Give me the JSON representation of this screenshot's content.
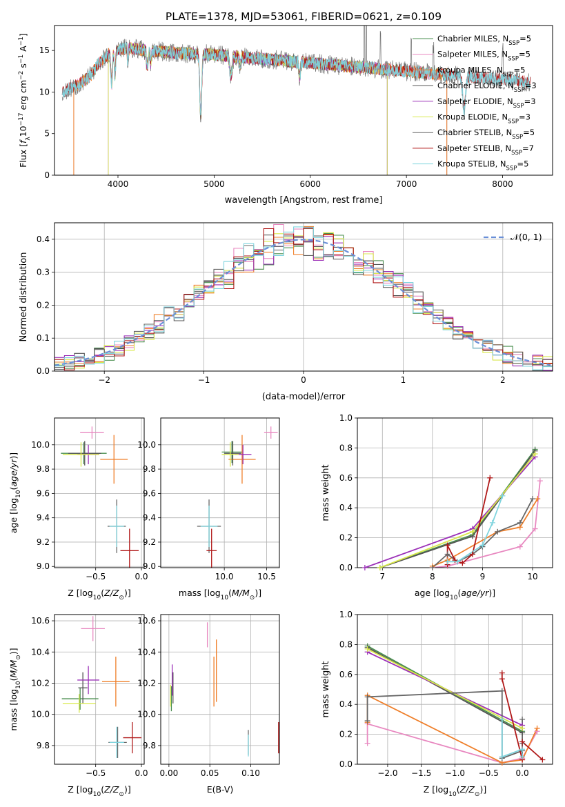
{
  "title": "PLATE=1378, MJD=53061, FIBERID=0621, z=0.109",
  "colors": {
    "Chabrier MILES": "#4a8f4f",
    "Salpeter MILES": "#e888c0",
    "Kroupa MILES": "#ef7f2a",
    "Chabrier ELODIE": "#555555",
    "Salpeter ELODIE": "#9b30b8",
    "Kroupa ELODIE": "#d8e84a",
    "Chabrier STELIB": "#666666",
    "Salpeter STELIB": "#b01818",
    "Kroupa STELIB": "#7fd4de",
    "normal": "#6a8fd8",
    "grid": "#b0b0b0"
  },
  "chart_data": [
    {
      "type": "line",
      "id": "spectrum",
      "xlabel": "wavelength [Angstrom, rest frame]",
      "ylabel": "Flux [f_λ 10^-17 erg cm^-2 s^-1 A^-1]",
      "xlim": [
        3340,
        8520
      ],
      "ylim": [
        0,
        18
      ],
      "xticks": [
        4000,
        5000,
        6000,
        7000,
        8000
      ],
      "yticks": [
        0,
        5,
        10,
        15
      ],
      "legend_position": "top-right",
      "series": [
        {
          "name": "Chabrier MILES, N_SSP=5",
          "label_main": "Chabrier MILES, N",
          "label_sub": "SSP",
          "label_tail": "=5",
          "key": "Chabrier MILES",
          "x_range": [
            3540,
            7420
          ],
          "linewidth": 0.8
        },
        {
          "name": "Salpeter MILES, N_SSP=5",
          "label_main": "Salpeter MILES, N",
          "label_sub": "SSP",
          "label_tail": "=5",
          "key": "Salpeter MILES",
          "x_range": [
            3540,
            7420
          ],
          "linewidth": 0.8
        },
        {
          "name": "Kroupa MILES, N_SSP=5",
          "label_main": "Kroupa MILES, N",
          "label_sub": "SSP",
          "label_tail": "=5",
          "key": "Kroupa MILES",
          "x_range": [
            3540,
            7420
          ],
          "linewidth": 1.0
        },
        {
          "name": "Chabrier ELODIE, N_SSP=3",
          "label_main": "Chabrier ELODIE, N",
          "label_sub": "SSP",
          "label_tail": "=3",
          "key": "Chabrier ELODIE",
          "x_range": [
            3900,
            6800
          ],
          "linewidth": 0.8
        },
        {
          "name": "Salpeter ELODIE, N_SSP=3",
          "label_main": "Salpeter ELODIE, N",
          "label_sub": "SSP",
          "label_tail": "=3",
          "key": "Salpeter ELODIE",
          "x_range": [
            3900,
            6800
          ],
          "linewidth": 0.8
        },
        {
          "name": "Kroupa ELODIE, N_SSP=3",
          "label_main": "Kroupa ELODIE, N",
          "label_sub": "SSP",
          "label_tail": "=3",
          "key": "Kroupa ELODIE",
          "x_range": [
            3900,
            6800
          ],
          "linewidth": 0.8
        },
        {
          "name": "Chabrier STELIB, N_SSP=5",
          "label_main": "Chabrier STELIB, N",
          "label_sub": "SSP",
          "label_tail": "=5",
          "key": "Chabrier STELIB",
          "x_range": [
            3420,
            8290
          ],
          "linewidth": 0.7
        },
        {
          "name": "Salpeter STELIB, N_SSP=7",
          "label_main": "Salpeter STELIB, N",
          "label_sub": "SSP",
          "label_tail": "=7",
          "key": "Salpeter STELIB",
          "x_range": [
            3420,
            8290
          ],
          "linewidth": 0.8
        },
        {
          "name": "Kroupa STELIB, N_SSP=5",
          "label_main": "Kroupa STELIB, N",
          "label_sub": "SSP",
          "label_tail": "=5",
          "key": "Kroupa STELIB",
          "x_range": [
            3420,
            8290
          ],
          "linewidth": 1.0
        }
      ],
      "continuum": [
        [
          3420,
          10.0
        ],
        [
          3600,
          11.0
        ],
        [
          3720,
          12.0
        ],
        [
          3800,
          13.5
        ],
        [
          3950,
          15.0
        ],
        [
          4100,
          15.3
        ],
        [
          4300,
          15.0
        ],
        [
          4600,
          14.7
        ],
        [
          5000,
          14.5
        ],
        [
          5500,
          14.0
        ],
        [
          6000,
          13.5
        ],
        [
          6500,
          13.0
        ],
        [
          7000,
          12.5
        ],
        [
          7500,
          12.0
        ],
        [
          8000,
          11.5
        ],
        [
          8300,
          11.2
        ]
      ],
      "absorption_lines": [
        [
          3934,
          4.0,
          12
        ],
        [
          3969,
          3.0,
          10
        ],
        [
          4102,
          1.5,
          8
        ],
        [
          4305,
          2.0,
          12
        ],
        [
          4341,
          1.5,
          8
        ],
        [
          4861,
          7.5,
          14
        ],
        [
          5175,
          2.5,
          18
        ],
        [
          5270,
          1.0,
          10
        ],
        [
          5890,
          2.0,
          10
        ],
        [
          7600,
          4.0,
          20
        ]
      ],
      "emission_lines": [
        [
          6563,
          4.0
        ],
        [
          6583,
          3.0
        ],
        [
          6730,
          2.0
        ],
        [
          7050,
          1.5
        ],
        [
          7280,
          1.5
        ],
        [
          8000,
          1.5
        ]
      ]
    },
    {
      "type": "step",
      "id": "residuals",
      "xlabel": "(data-model)/error",
      "ylabel": "Normed distribution",
      "xlim": [
        -2.5,
        2.5
      ],
      "ylim": [
        0,
        0.45
      ],
      "xticks": [
        -2,
        -1,
        0,
        1,
        2
      ],
      "yticks": [
        0.0,
        0.1,
        0.2,
        0.3,
        0.4
      ],
      "legend_position": "top-right",
      "bin_width": 0.1,
      "normal_curve": {
        "name": "N(0,1)",
        "label": "𝒩(0, 1)",
        "mu": 0,
        "sigma": 1,
        "style": "dashed"
      },
      "series_keys": [
        "Chabrier MILES",
        "Salpeter MILES",
        "Kroupa MILES",
        "Chabrier ELODIE",
        "Salpeter ELODIE",
        "Kroupa ELODIE",
        "Chabrier STELIB",
        "Salpeter STELIB",
        "Kroupa STELIB"
      ]
    },
    {
      "type": "scatter",
      "id": "z-age",
      "xlabel": "Z [log10(Z/Z☉)]",
      "ylabel": "age [log10(age/yr)]",
      "xlim": [
        -0.95,
        0.03
      ],
      "ylim": [
        8.99,
        10.22
      ],
      "xticks": [
        -0.5,
        0.0
      ],
      "yticks": [
        9.0,
        9.2,
        9.4,
        9.6,
        9.8,
        10.0
      ],
      "points": [
        {
          "key": "Chabrier MILES",
          "x": -0.63,
          "y": 9.93,
          "xerr": 0.25,
          "yerr": 0.09
        },
        {
          "key": "Salpeter MILES",
          "x": -0.54,
          "y": 10.1,
          "xerr": 0.13,
          "yerr": 0.05
        },
        {
          "key": "Kroupa MILES",
          "x": -0.3,
          "y": 9.88,
          "xerr": 0.15,
          "yerr": 0.2
        },
        {
          "key": "Chabrier ELODIE",
          "x": -0.62,
          "y": 9.93,
          "xerr": 0.18,
          "yerr": 0.1
        },
        {
          "key": "Salpeter ELODIE",
          "x": -0.58,
          "y": 9.92,
          "xerr": 0.12,
          "yerr": 0.08
        },
        {
          "key": "Kroupa ELODIE",
          "x": -0.66,
          "y": 9.92,
          "xerr": 0.2,
          "yerr": 0.1
        },
        {
          "key": "Chabrier STELIB",
          "x": -0.27,
          "y": 9.33,
          "xerr": 0.1,
          "yerr": 0.22
        },
        {
          "key": "Salpeter STELIB",
          "x": -0.13,
          "y": 9.13,
          "xerr": 0.1,
          "yerr": 0.18
        },
        {
          "key": "Kroupa STELIB",
          "x": -0.27,
          "y": 9.33,
          "xerr": 0.08,
          "yerr": 0.17
        }
      ]
    },
    {
      "type": "scatter",
      "id": "mass-age",
      "xlabel": "mass [log10(M/M☉)]",
      "ylabel": "",
      "xlim": [
        9.25,
        10.65
      ],
      "ylim": [
        8.99,
        10.22
      ],
      "xticks": [
        10.0,
        10.5
      ],
      "yticks": [
        9.0,
        9.2,
        9.4,
        9.6,
        9.8,
        10.0
      ],
      "points": [
        {
          "key": "Chabrier MILES",
          "x": 10.09,
          "y": 9.94,
          "xerr": 0.12,
          "yerr": 0.09
        },
        {
          "key": "Salpeter MILES",
          "x": 10.55,
          "y": 10.1,
          "xerr": 0.08,
          "yerr": 0.05
        },
        {
          "key": "Kroupa MILES",
          "x": 10.21,
          "y": 9.88,
          "xerr": 0.16,
          "yerr": 0.2
        },
        {
          "key": "Chabrier ELODIE",
          "x": 10.1,
          "y": 9.93,
          "xerr": 0.1,
          "yerr": 0.1
        },
        {
          "key": "Salpeter ELODIE",
          "x": 10.22,
          "y": 9.92,
          "xerr": 0.1,
          "yerr": 0.08
        },
        {
          "key": "Kroupa ELODIE",
          "x": 10.07,
          "y": 9.92,
          "xerr": 0.1,
          "yerr": 0.1
        },
        {
          "key": "Chabrier STELIB",
          "x": 9.82,
          "y": 9.33,
          "xerr": 0.14,
          "yerr": 0.22
        },
        {
          "key": "Salpeter STELIB",
          "x": 9.85,
          "y": 9.13,
          "xerr": 0.06,
          "yerr": 0.18
        },
        {
          "key": "Kroupa STELIB",
          "x": 9.82,
          "y": 9.33,
          "xerr": 0.1,
          "yerr": 0.17
        }
      ]
    },
    {
      "type": "line",
      "id": "age-weights",
      "xlabel": "age [log10(age/yr)]",
      "ylabel": "mass weight",
      "xlim": [
        6.5,
        10.4
      ],
      "ylim": [
        0,
        1.0
      ],
      "xticks": [
        7,
        8,
        9,
        10
      ],
      "yticks": [
        0.0,
        0.2,
        0.4,
        0.6,
        0.8,
        1.0
      ],
      "series": [
        {
          "key": "Chabrier MILES",
          "x": [
            6.95,
            8.8,
            10.05
          ],
          "y": [
            0.0,
            0.22,
            0.79
          ]
        },
        {
          "key": "Salpeter MILES",
          "x": [
            8.0,
            8.3,
            9.75,
            10.05,
            10.15
          ],
          "y": [
            0.0,
            0.01,
            0.14,
            0.26,
            0.58
          ]
        },
        {
          "key": "Kroupa MILES",
          "x": [
            8.0,
            8.3,
            9.3,
            9.75,
            10.1
          ],
          "y": [
            0.01,
            0.05,
            0.24,
            0.27,
            0.46
          ]
        },
        {
          "key": "Chabrier ELODIE",
          "x": [
            6.95,
            8.8,
            10.05
          ],
          "y": [
            0.0,
            0.21,
            0.78
          ]
        },
        {
          "key": "Salpeter ELODIE",
          "x": [
            6.65,
            8.8,
            10.05
          ],
          "y": [
            0.0,
            0.26,
            0.74
          ]
        },
        {
          "key": "Kroupa ELODIE",
          "x": [
            6.95,
            8.8,
            10.05
          ],
          "y": [
            0.0,
            0.24,
            0.76
          ]
        },
        {
          "key": "Chabrier STELIB",
          "x": [
            8.0,
            8.3,
            8.5,
            8.8,
            9.0,
            9.3,
            9.75,
            10.0
          ],
          "y": [
            0.0,
            0.09,
            0.04,
            0.09,
            0.14,
            0.24,
            0.3,
            0.46
          ]
        },
        {
          "key": "Salpeter STELIB",
          "x": [
            8.3,
            8.3,
            8.45,
            8.6,
            8.8,
            9.15
          ],
          "y": [
            0.02,
            0.15,
            0.05,
            0.03,
            0.09,
            0.6
          ]
        },
        {
          "key": "Kroupa STELIB",
          "x": [
            8.3,
            8.5,
            9.0,
            9.2,
            9.4
          ],
          "y": [
            0.04,
            0.04,
            0.15,
            0.3,
            0.48
          ]
        }
      ]
    },
    {
      "type": "scatter",
      "id": "z-mass",
      "xlabel": "Z [log10(Z/Z☉)]",
      "ylabel": "mass [log10(M/M☉)]",
      "xlim": [
        -0.95,
        0.03
      ],
      "ylim": [
        9.68,
        10.64
      ],
      "xticks": [
        -0.5,
        0.0
      ],
      "yticks": [
        9.8,
        10.0,
        10.2,
        10.4,
        10.6
      ],
      "points": [
        {
          "key": "Chabrier MILES",
          "x": -0.67,
          "y": 10.1,
          "xerr": 0.2,
          "yerr": 0.07
        },
        {
          "key": "Salpeter MILES",
          "x": -0.53,
          "y": 10.55,
          "xerr": 0.13,
          "yerr": 0.08
        },
        {
          "key": "Kroupa MILES",
          "x": -0.28,
          "y": 10.21,
          "xerr": 0.15,
          "yerr": 0.16
        },
        {
          "key": "Chabrier ELODIE",
          "x": -0.64,
          "y": 10.17,
          "xerr": 0.05,
          "yerr": 0.1
        },
        {
          "key": "Salpeter ELODIE",
          "x": -0.58,
          "y": 10.22,
          "xerr": 0.12,
          "yerr": 0.09
        },
        {
          "key": "Kroupa ELODIE",
          "x": -0.68,
          "y": 10.07,
          "xerr": 0.18,
          "yerr": 0.06
        },
        {
          "key": "Chabrier STELIB",
          "x": -0.26,
          "y": 9.82,
          "xerr": 0.1,
          "yerr": 0.1
        },
        {
          "key": "Salpeter STELIB",
          "x": -0.1,
          "y": 9.85,
          "xerr": 0.1,
          "yerr": 0.1
        },
        {
          "key": "Kroupa STELIB",
          "x": -0.27,
          "y": 9.82,
          "xerr": 0.08,
          "yerr": 0.1
        }
      ]
    },
    {
      "type": "scatter",
      "id": "ebv-mass",
      "xlabel": "E(B-V)",
      "ylabel": "",
      "xlim": [
        -0.01,
        0.135
      ],
      "ylim": [
        9.68,
        10.64
      ],
      "xticks": [
        0.0,
        0.05,
        0.1
      ],
      "yticks": [
        9.8,
        10.0,
        10.2,
        10.4,
        10.6
      ],
      "points": [
        {
          "key": "Chabrier MILES",
          "x": 0.003,
          "y": 10.1,
          "xerr": 0.0,
          "yerr": 0.08
        },
        {
          "key": "Salpeter MILES",
          "x": 0.047,
          "y": 10.51,
          "xerr": 0.0,
          "yerr": 0.08
        },
        {
          "key": "Kroupa MILES",
          "x": 0.055,
          "y": 10.21,
          "xerr": 0.0,
          "yerr": 0.16
        },
        {
          "key": "Chabrier ELODIE",
          "x": 0.005,
          "y": 10.17,
          "xerr": 0.0,
          "yerr": 0.1
        },
        {
          "key": "Salpeter ELODIE",
          "x": 0.004,
          "y": 10.22,
          "xerr": 0.0,
          "yerr": 0.1
        },
        {
          "key": "Kroupa ELODIE",
          "x": 0.002,
          "y": 10.12,
          "xerr": 0.0,
          "yerr": 0.07
        },
        {
          "key": "Chabrier STELIB",
          "x": 0.097,
          "y": 9.82,
          "xerr": 0.0,
          "yerr": 0.08
        },
        {
          "key": "Salpeter STELIB",
          "x": 0.134,
          "y": 9.85,
          "xerr": 0.0,
          "yerr": 0.1
        },
        {
          "key": "Kroupa STELIB",
          "x": 0.097,
          "y": 9.8,
          "xerr": 0.0,
          "yerr": 0.07
        },
        {
          "key": "Kroupa MILES",
          "x": 0.058,
          "y": 10.28,
          "xerr": 0.0,
          "yerr": 0.2
        }
      ]
    },
    {
      "type": "line",
      "id": "z-weights",
      "xlabel": "Z [log10(Z/Z☉)]",
      "ylabel": "mass weight",
      "xlim": [
        -2.45,
        0.45
      ],
      "ylim": [
        0,
        1.0
      ],
      "xticks": [
        -2.0,
        -1.5,
        -1.0,
        -0.5,
        0.0
      ],
      "yticks": [
        0.0,
        0.2,
        0.4,
        0.6,
        0.8,
        1.0
      ],
      "series": [
        {
          "key": "Chabrier MILES",
          "x": [
            -2.3,
            0.0
          ],
          "y": [
            0.79,
            0.22
          ]
        },
        {
          "key": "Salpeter MILES",
          "x": [
            -2.3,
            -2.3,
            -0.3,
            0.0,
            0.22
          ],
          "y": [
            0.14,
            0.27,
            0.01,
            0.04,
            0.22
          ]
        },
        {
          "key": "Kroupa MILES",
          "x": [
            -2.3,
            -2.3,
            -0.3,
            0.0,
            0.22
          ],
          "y": [
            0.28,
            0.46,
            0.01,
            0.03,
            0.24
          ]
        },
        {
          "key": "Chabrier ELODIE",
          "x": [
            -2.3,
            0.0
          ],
          "y": [
            0.78,
            0.21
          ]
        },
        {
          "key": "Salpeter ELODIE",
          "x": [
            -2.3,
            0.0
          ],
          "y": [
            0.75,
            0.26
          ]
        },
        {
          "key": "Kroupa ELODIE",
          "x": [
            -2.3,
            0.0
          ],
          "y": [
            0.77,
            0.24
          ]
        },
        {
          "key": "Chabrier STELIB",
          "x": [
            -2.3,
            -2.3,
            -0.3,
            -0.3,
            0.0,
            0.0,
            0.0
          ],
          "y": [
            0.29,
            0.45,
            0.49,
            0.04,
            0.09,
            0.14,
            0.3
          ]
        },
        {
          "key": "Salpeter STELIB",
          "x": [
            -0.3,
            -0.3,
            0.0,
            0.0,
            0.3
          ],
          "y": [
            0.61,
            0.57,
            0.03,
            0.15,
            0.03
          ]
        },
        {
          "key": "Kroupa STELIB",
          "x": [
            -0.3,
            -0.3,
            0.0,
            0.0
          ],
          "y": [
            0.3,
            0.05,
            0.1,
            0.05
          ]
        }
      ]
    }
  ]
}
